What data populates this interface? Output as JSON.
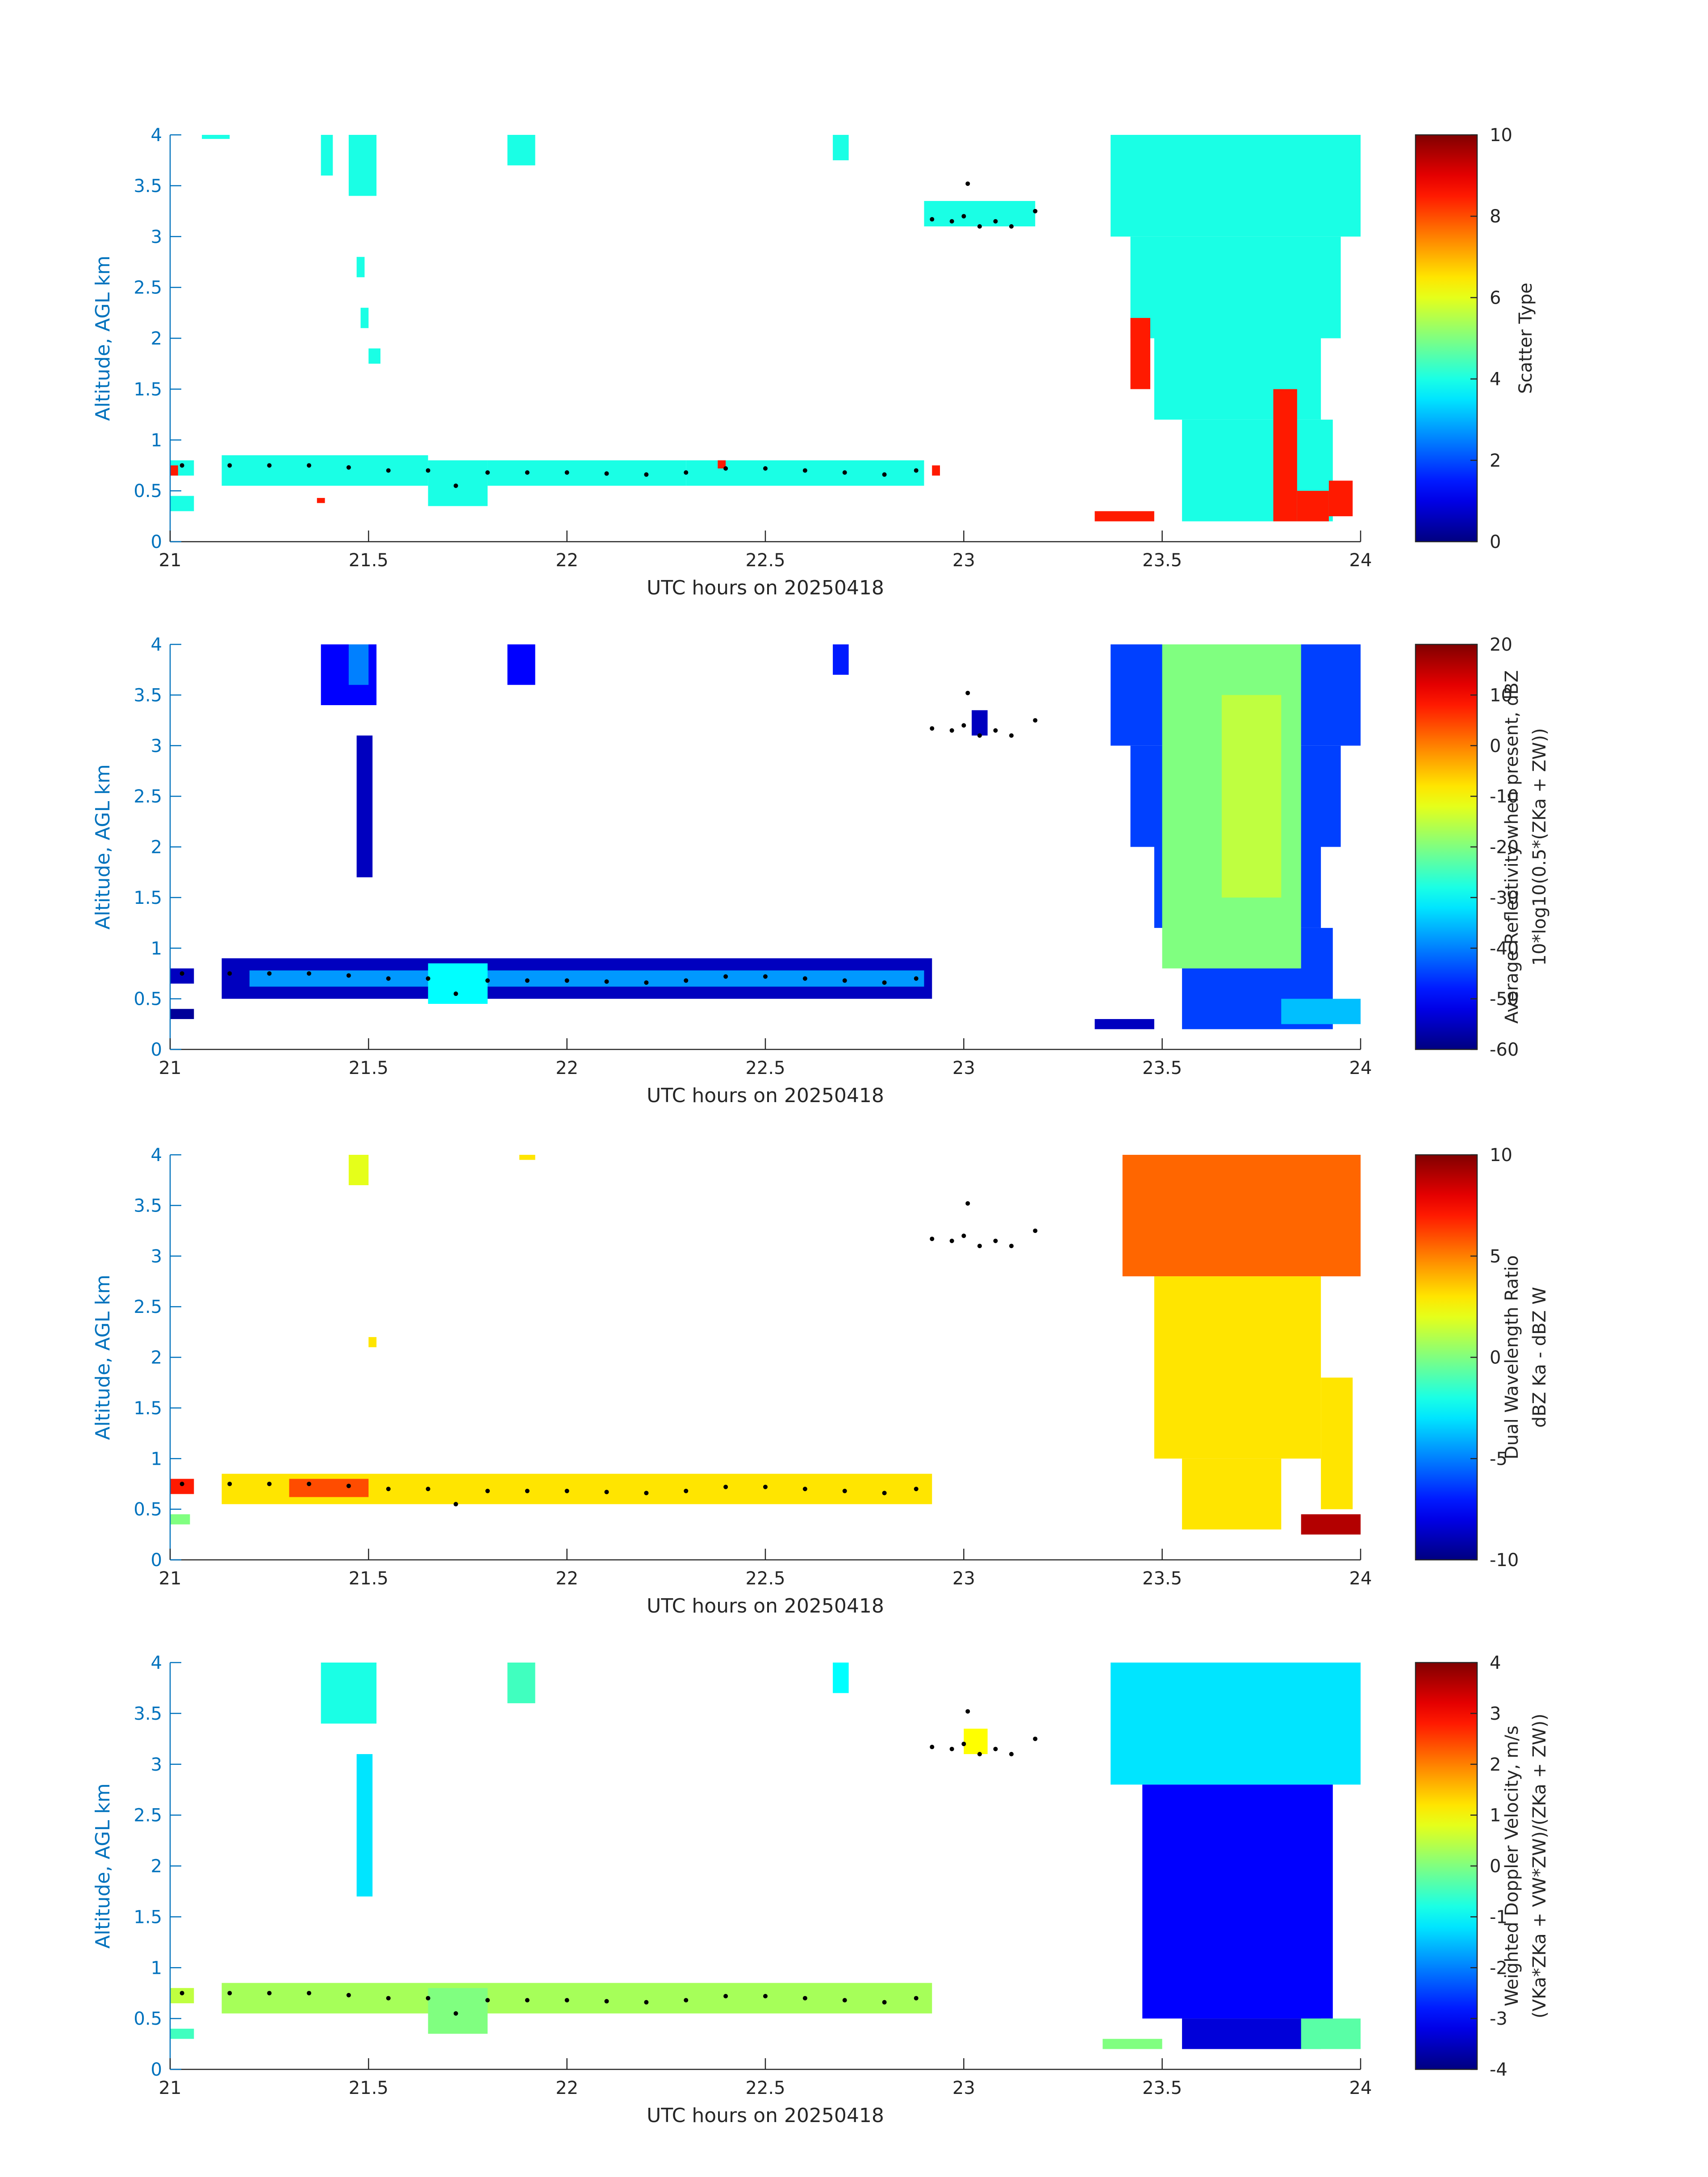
{
  "chart_data": [
    {
      "type": "heatmap",
      "xlabel": "UTC hours on 20250418",
      "ylabel": "Altitude, AGL km",
      "xlim": [
        21,
        24
      ],
      "xticks": [
        21,
        21.5,
        22,
        22.5,
        23,
        23.5,
        24
      ],
      "ylim": [
        0,
        4
      ],
      "yticks": [
        0,
        0.5,
        1,
        1.5,
        2,
        2.5,
        3,
        3.5,
        4
      ],
      "colormap": "jet",
      "clim": [
        0,
        10
      ],
      "cticks": [
        0,
        2,
        4,
        6,
        8,
        10
      ],
      "colorbar_label": [
        "Scatter Type"
      ],
      "cells": {
        "x0": [
          21.08,
          21.38,
          21.45,
          21.47,
          21.48,
          21.5,
          21.85,
          22.67,
          22.9,
          21.0,
          21.0,
          21.13,
          21.65,
          21.8,
          22.3,
          21.0,
          22.38,
          22.92,
          21.37,
          23.37,
          23.42,
          23.48,
          23.55,
          23.78,
          23.84,
          23.92,
          23.42,
          23.33
        ],
        "x1": [
          21.15,
          21.41,
          21.52,
          21.49,
          21.5,
          21.53,
          21.92,
          22.71,
          23.18,
          21.06,
          21.06,
          21.65,
          21.8,
          22.3,
          22.9,
          21.02,
          22.4,
          22.94,
          21.39,
          24.0,
          23.95,
          23.9,
          23.93,
          23.84,
          23.92,
          23.98,
          23.47,
          23.48
        ],
        "y0": [
          3.96,
          3.6,
          3.4,
          2.6,
          2.1,
          1.75,
          3.7,
          3.75,
          3.1,
          0.65,
          0.3,
          0.55,
          0.35,
          0.55,
          0.55,
          0.65,
          0.72,
          0.65,
          0.38,
          3.0,
          2.0,
          1.2,
          0.2,
          0.2,
          0.2,
          0.25,
          1.5,
          0.2
        ],
        "y1": [
          4.0,
          4.0,
          4.0,
          2.8,
          2.3,
          1.9,
          4.0,
          4.0,
          3.35,
          0.8,
          0.45,
          0.85,
          0.8,
          0.8,
          0.8,
          0.75,
          0.8,
          0.75,
          0.43,
          4.0,
          3.0,
          2.0,
          1.2,
          1.5,
          0.5,
          0.6,
          2.2,
          0.3
        ],
        "values": [
          4,
          4,
          4,
          4,
          4,
          4,
          4,
          4,
          4,
          4,
          4,
          4,
          4,
          4,
          4,
          8.5,
          8.5,
          8.5,
          8.5,
          4,
          4,
          4,
          4,
          8.5,
          8.5,
          8.5,
          8.5,
          8.5
        ]
      },
      "points": {
        "color": "#000000",
        "x": [
          21.03,
          21.15,
          21.25,
          21.35,
          21.45,
          21.55,
          21.65,
          21.72,
          21.8,
          21.9,
          22.0,
          22.1,
          22.2,
          22.3,
          22.4,
          22.5,
          22.6,
          22.7,
          22.8,
          22.88,
          22.92,
          22.97,
          23.0,
          23.01,
          23.04,
          23.08,
          23.12,
          23.18
        ],
        "y": [
          0.75,
          0.75,
          0.75,
          0.75,
          0.73,
          0.7,
          0.7,
          0.55,
          0.68,
          0.68,
          0.68,
          0.67,
          0.66,
          0.68,
          0.72,
          0.72,
          0.7,
          0.68,
          0.66,
          0.7,
          3.17,
          3.15,
          3.2,
          3.52,
          3.1,
          3.15,
          3.1,
          3.25
        ]
      }
    },
    {
      "type": "heatmap",
      "xlabel": "UTC hours on 20250418",
      "ylabel": "Altitude, AGL km",
      "xlim": [
        21,
        24
      ],
      "xticks": [
        21,
        21.5,
        22,
        22.5,
        23,
        23.5,
        24
      ],
      "ylim": [
        0,
        4
      ],
      "yticks": [
        0,
        0.5,
        1,
        1.5,
        2,
        2.5,
        3,
        3.5,
        4
      ],
      "colormap": "jet",
      "clim": [
        -60,
        20
      ],
      "cticks": [
        -60,
        -50,
        -40,
        -30,
        -20,
        -10,
        0,
        10,
        20
      ],
      "colorbar_label": [
        "Average Reflectivity when present, dBZ",
        "10*log10(0.5*(ZKa + ZW))"
      ],
      "cells": {
        "x0": [
          21.38,
          21.45,
          21.47,
          21.85,
          22.67,
          23.02,
          21.0,
          21.0,
          21.13,
          21.2,
          21.65,
          23.37,
          23.42,
          23.48,
          23.55,
          23.5,
          23.65,
          23.8,
          23.33
        ],
        "x1": [
          21.52,
          21.5,
          21.51,
          21.92,
          22.71,
          23.06,
          21.06,
          21.06,
          22.92,
          22.9,
          21.8,
          24.0,
          23.95,
          23.9,
          23.93,
          23.85,
          23.8,
          24.0,
          23.48
        ],
        "y0": [
          3.4,
          3.6,
          1.7,
          3.6,
          3.7,
          3.1,
          0.65,
          0.3,
          0.5,
          0.62,
          0.45,
          3.0,
          2.0,
          1.2,
          0.2,
          0.8,
          1.5,
          0.25,
          0.2
        ],
        "y1": [
          4.0,
          4.0,
          3.1,
          4.0,
          4.0,
          3.35,
          0.8,
          0.4,
          0.9,
          0.78,
          0.85,
          4.0,
          3.0,
          2.0,
          1.2,
          4.0,
          3.5,
          0.5,
          0.3
        ],
        "values": [
          -50,
          -40,
          -55,
          -50,
          -48,
          -55,
          -55,
          -58,
          -55,
          -38,
          -30,
          -45,
          -45,
          -45,
          -45,
          -20,
          -15,
          -35,
          -55
        ]
      },
      "points": {
        "color": "#000000",
        "x": [
          21.03,
          21.15,
          21.25,
          21.35,
          21.45,
          21.55,
          21.65,
          21.72,
          21.8,
          21.9,
          22.0,
          22.1,
          22.2,
          22.3,
          22.4,
          22.5,
          22.6,
          22.7,
          22.8,
          22.88,
          22.92,
          22.97,
          23.0,
          23.01,
          23.04,
          23.08,
          23.12,
          23.18
        ],
        "y": [
          0.75,
          0.75,
          0.75,
          0.75,
          0.73,
          0.7,
          0.7,
          0.55,
          0.68,
          0.68,
          0.68,
          0.67,
          0.66,
          0.68,
          0.72,
          0.72,
          0.7,
          0.68,
          0.66,
          0.7,
          3.17,
          3.15,
          3.2,
          3.52,
          3.1,
          3.15,
          3.1,
          3.25
        ]
      }
    },
    {
      "type": "heatmap",
      "xlabel": "UTC hours on 20250418",
      "ylabel": "Altitude, AGL km",
      "xlim": [
        21,
        24
      ],
      "xticks": [
        21,
        21.5,
        22,
        22.5,
        23,
        23.5,
        24
      ],
      "ylim": [
        0,
        4
      ],
      "yticks": [
        0,
        0.5,
        1,
        1.5,
        2,
        2.5,
        3,
        3.5,
        4
      ],
      "colormap": "jet",
      "clim": [
        -10,
        10
      ],
      "cticks": [
        -10,
        -5,
        0,
        5,
        10
      ],
      "colorbar_label": [
        "Dual Wavelength Ratio",
        "dBZ Ka - dBZ W"
      ],
      "cells": {
        "x0": [
          21.45,
          21.5,
          21.88,
          21.0,
          21.0,
          21.13,
          21.3,
          23.4,
          23.48,
          23.55,
          23.9,
          23.85
        ],
        "x1": [
          21.5,
          21.52,
          21.92,
          21.06,
          21.05,
          22.92,
          21.5,
          24.0,
          23.9,
          23.8,
          23.98,
          24.0
        ],
        "y0": [
          3.7,
          2.1,
          3.95,
          0.65,
          0.35,
          0.55,
          0.62,
          2.8,
          1.0,
          0.3,
          0.5,
          0.25
        ],
        "y1": [
          4.0,
          2.2,
          4.0,
          0.8,
          0.45,
          0.85,
          0.8,
          4.0,
          2.8,
          1.0,
          1.8,
          0.45
        ],
        "values": [
          2,
          3,
          3,
          7,
          0,
          3,
          6,
          5.5,
          3,
          3,
          3,
          9
        ]
      },
      "points": {
        "color": "#000000",
        "x": [
          21.03,
          21.15,
          21.25,
          21.35,
          21.45,
          21.55,
          21.65,
          21.72,
          21.8,
          21.9,
          22.0,
          22.1,
          22.2,
          22.3,
          22.4,
          22.5,
          22.6,
          22.7,
          22.8,
          22.88,
          22.92,
          22.97,
          23.0,
          23.01,
          23.04,
          23.08,
          23.12,
          23.18
        ],
        "y": [
          0.75,
          0.75,
          0.75,
          0.75,
          0.73,
          0.7,
          0.7,
          0.55,
          0.68,
          0.68,
          0.68,
          0.67,
          0.66,
          0.68,
          0.72,
          0.72,
          0.7,
          0.68,
          0.66,
          0.7,
          3.17,
          3.15,
          3.2,
          3.52,
          3.1,
          3.15,
          3.1,
          3.25
        ]
      }
    },
    {
      "type": "heatmap",
      "xlabel": "UTC hours on 20250418",
      "ylabel": "Altitude, AGL km",
      "xlim": [
        21,
        24
      ],
      "xticks": [
        21,
        21.5,
        22,
        22.5,
        23,
        23.5,
        24
      ],
      "ylim": [
        0,
        4
      ],
      "yticks": [
        0,
        0.5,
        1,
        1.5,
        2,
        2.5,
        3,
        3.5,
        4
      ],
      "colormap": "jet",
      "clim": [
        -4,
        4
      ],
      "cticks": [
        -4,
        -3,
        -2,
        -1,
        0,
        1,
        2,
        3,
        4
      ],
      "colorbar_label": [
        "Weighted Doppler Velocity, m/s",
        "(VKa*ZKa + VW*ZW)/(ZKa + ZW))"
      ],
      "cells": {
        "x0": [
          21.38,
          21.47,
          21.85,
          22.67,
          23.0,
          21.0,
          21.0,
          21.13,
          21.65,
          23.37,
          23.45,
          23.55,
          23.85,
          23.35
        ],
        "x1": [
          21.52,
          21.51,
          21.92,
          22.71,
          23.06,
          21.06,
          21.06,
          22.92,
          21.8,
          24.0,
          23.93,
          23.9,
          24.0,
          23.5
        ],
        "y0": [
          3.4,
          1.7,
          3.6,
          3.7,
          3.1,
          0.65,
          0.3,
          0.55,
          0.35,
          2.8,
          0.5,
          0.2,
          0.2,
          0.2
        ],
        "y1": [
          4.0,
          3.1,
          4.0,
          4.0,
          3.35,
          0.8,
          0.4,
          0.85,
          0.8,
          4.0,
          2.8,
          0.5,
          0.5,
          0.3
        ],
        "values": [
          -0.8,
          -1.2,
          -0.5,
          -1,
          1,
          0.5,
          -0.5,
          0.3,
          0,
          -1.2,
          -3,
          -3.3,
          -0.3,
          0
        ]
      },
      "points": {
        "color": "#000000",
        "x": [
          21.03,
          21.15,
          21.25,
          21.35,
          21.45,
          21.55,
          21.65,
          21.72,
          21.8,
          21.9,
          22.0,
          22.1,
          22.2,
          22.3,
          22.4,
          22.5,
          22.6,
          22.7,
          22.8,
          22.88,
          22.92,
          22.97,
          23.0,
          23.01,
          23.04,
          23.08,
          23.12,
          23.18
        ],
        "y": [
          0.75,
          0.75,
          0.75,
          0.75,
          0.73,
          0.7,
          0.7,
          0.55,
          0.68,
          0.68,
          0.68,
          0.67,
          0.66,
          0.68,
          0.72,
          0.72,
          0.7,
          0.68,
          0.66,
          0.7,
          3.17,
          3.15,
          3.2,
          3.52,
          3.1,
          3.15,
          3.1,
          3.25
        ]
      }
    }
  ]
}
